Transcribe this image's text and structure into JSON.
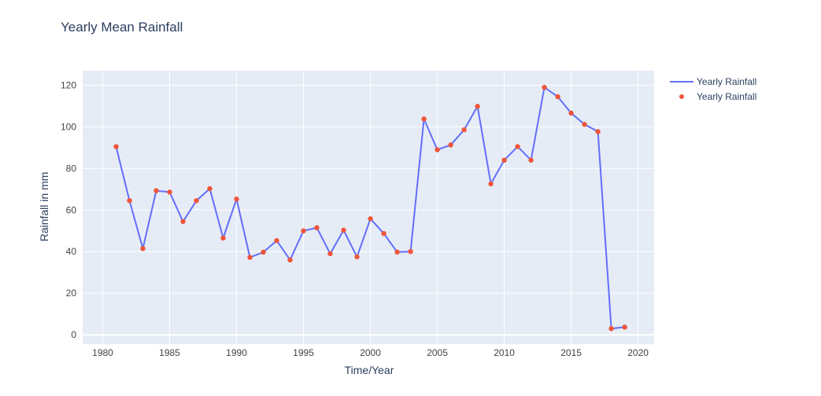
{
  "chart_data": {
    "type": "line",
    "title": "Yearly Mean Rainfall",
    "xlabel": "Time/Year",
    "ylabel": "Rainfall in mm",
    "xlim": [
      1978.5,
      2021.2
    ],
    "ylim": [
      -4.5,
      127
    ],
    "xticks": [
      1980,
      1985,
      1990,
      1995,
      2000,
      2005,
      2010,
      2015,
      2020
    ],
    "yticks": [
      0,
      20,
      40,
      60,
      80,
      100,
      120
    ],
    "grid": true,
    "legend_position": "top-right",
    "x": [
      1981,
      1982,
      1983,
      1984,
      1985,
      1986,
      1987,
      1988,
      1989,
      1990,
      1991,
      1992,
      1993,
      1994,
      1995,
      1996,
      1997,
      1998,
      1999,
      2000,
      2001,
      2002,
      2003,
      2004,
      2005,
      2006,
      2007,
      2008,
      2009,
      2010,
      2011,
      2012,
      2013,
      2014,
      2015,
      2016,
      2017,
      2018,
      2019
    ],
    "series": [
      {
        "name": "Yearly Rainfall",
        "mode": "lines",
        "color": "#636efa",
        "values": [
          90.5,
          64.5,
          41.5,
          69.3,
          68.6,
          54.5,
          64.5,
          70.3,
          46.5,
          65.3,
          37.2,
          39.7,
          45.3,
          36.0,
          50.0,
          51.5,
          39.0,
          50.3,
          37.5,
          55.8,
          48.7,
          39.8,
          40.0,
          103.8,
          89.0,
          91.3,
          98.6,
          109.9,
          72.6,
          84.0,
          90.5,
          84.0,
          119.0,
          114.5,
          106.6,
          101.2,
          97.7,
          3.0,
          3.7
        ]
      },
      {
        "name": "Yearly Rainfall",
        "mode": "markers",
        "color": "#ef553b",
        "values": [
          90.5,
          64.5,
          41.5,
          69.3,
          68.6,
          54.5,
          64.5,
          70.3,
          46.5,
          65.3,
          37.2,
          39.7,
          45.3,
          36.0,
          50.0,
          51.5,
          39.0,
          50.3,
          37.5,
          55.8,
          48.7,
          39.8,
          40.0,
          103.8,
          89.0,
          91.3,
          98.6,
          109.9,
          72.6,
          84.0,
          90.5,
          84.0,
          119.0,
          114.5,
          106.6,
          101.2,
          97.7,
          3.0,
          3.7
        ]
      }
    ]
  },
  "colors": {
    "plot_background": "#e5ecf6",
    "grid": "#ffffff",
    "text": "#2a3f5f",
    "tick_text": "#444444"
  }
}
